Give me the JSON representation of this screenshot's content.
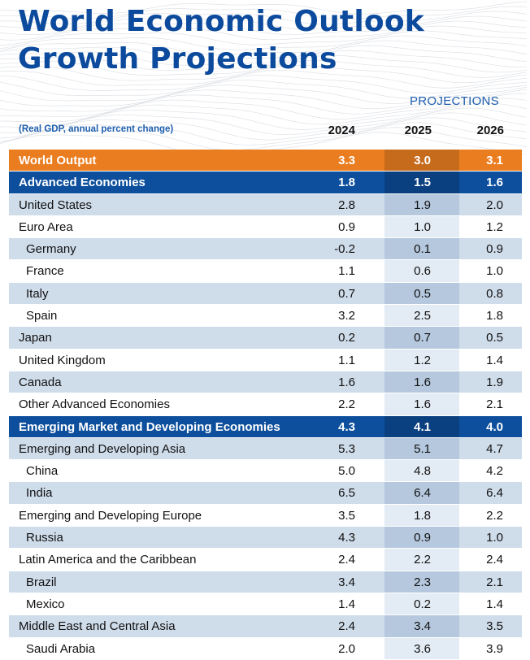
{
  "title": {
    "line1": "World Economic Outlook",
    "line2": "Growth Projections"
  },
  "header": {
    "projections_label": "PROJECTIONS",
    "units": "(Real GDP, annual percent change)",
    "years": [
      "2024",
      "2025",
      "2026"
    ]
  },
  "rows": [
    {
      "label": "World Output",
      "style": "world",
      "values": [
        "3.3",
        "3.0",
        "3.1"
      ]
    },
    {
      "label": "Advanced Economies",
      "style": "blue",
      "values": [
        "1.8",
        "1.5",
        "1.6"
      ]
    },
    {
      "label": "United States",
      "style": "light",
      "values": [
        "2.8",
        "1.9",
        "2.0"
      ]
    },
    {
      "label": "Euro Area",
      "style": "white",
      "values": [
        "0.9",
        "1.0",
        "1.2"
      ]
    },
    {
      "label": "Germany",
      "style": "light",
      "indent": true,
      "values": [
        "-0.2",
        "0.1",
        "0.9"
      ]
    },
    {
      "label": "France",
      "style": "white",
      "indent": true,
      "values": [
        "1.1",
        "0.6",
        "1.0"
      ]
    },
    {
      "label": "Italy",
      "style": "light",
      "indent": true,
      "values": [
        "0.7",
        "0.5",
        "0.8"
      ]
    },
    {
      "label": "Spain",
      "style": "white",
      "indent": true,
      "values": [
        "3.2",
        "2.5",
        "1.8"
      ]
    },
    {
      "label": "Japan",
      "style": "light",
      "values": [
        "0.2",
        "0.7",
        "0.5"
      ]
    },
    {
      "label": "United Kingdom",
      "style": "white",
      "values": [
        "1.1",
        "1.2",
        "1.4"
      ]
    },
    {
      "label": "Canada",
      "style": "light",
      "values": [
        "1.6",
        "1.6",
        "1.9"
      ]
    },
    {
      "label": "Other Advanced Economies",
      "style": "white",
      "values": [
        "2.2",
        "1.6",
        "2.1"
      ]
    },
    {
      "label": "Emerging Market and Developing Economies",
      "style": "blue",
      "values": [
        "4.3",
        "4.1",
        "4.0"
      ]
    },
    {
      "label": "Emerging and Developing Asia",
      "style": "light",
      "values": [
        "5.3",
        "5.1",
        "4.7"
      ]
    },
    {
      "label": "China",
      "style": "white",
      "indent": true,
      "values": [
        "5.0",
        "4.8",
        "4.2"
      ]
    },
    {
      "label": "India",
      "style": "light",
      "indent": true,
      "values": [
        "6.5",
        "6.4",
        "6.4"
      ]
    },
    {
      "label": "Emerging and Developing Europe",
      "style": "white",
      "values": [
        "3.5",
        "1.8",
        "2.2"
      ]
    },
    {
      "label": "Russia",
      "style": "light",
      "indent": true,
      "values": [
        "4.3",
        "0.9",
        "1.0"
      ]
    },
    {
      "label": "Latin America and the Caribbean",
      "style": "white",
      "values": [
        "2.4",
        "2.2",
        "2.4"
      ]
    },
    {
      "label": "Brazil",
      "style": "light",
      "indent": true,
      "values": [
        "3.4",
        "2.3",
        "2.1"
      ]
    },
    {
      "label": "Mexico",
      "style": "white",
      "indent": true,
      "values": [
        "1.4",
        "0.2",
        "1.4"
      ]
    },
    {
      "label": "Middle East and Central Asia",
      "style": "light",
      "values": [
        "2.4",
        "3.4",
        "3.5"
      ]
    },
    {
      "label": "Saudi Arabia",
      "style": "white",
      "indent": true,
      "values": [
        "2.0",
        "3.6",
        "3.9"
      ]
    }
  ]
}
